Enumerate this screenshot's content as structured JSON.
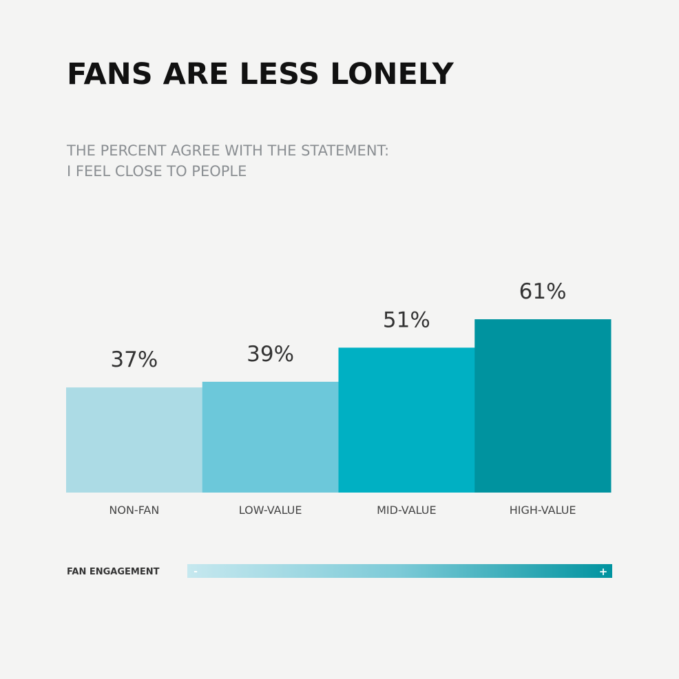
{
  "chart_data": {
    "type": "bar",
    "title": "FANS ARE LESS LONELY",
    "subtitle": [
      "THE PERCENT AGREE WITH THE STATEMENT:",
      "I FEEL CLOSE TO PEOPLE"
    ],
    "categories": [
      "NON-FAN",
      "LOW-VALUE",
      "MID-VALUE",
      "HIGH-VALUE"
    ],
    "values": [
      37,
      39,
      51,
      61
    ],
    "value_labels": [
      "37%",
      "39%",
      "51%",
      "61%"
    ],
    "colors": [
      "#acdbe5",
      "#6cc8da",
      "#00b0c3",
      "#00939f"
    ],
    "legend": {
      "label": "FAN ENGAGEMENT",
      "low": "-",
      "high": "+"
    }
  }
}
